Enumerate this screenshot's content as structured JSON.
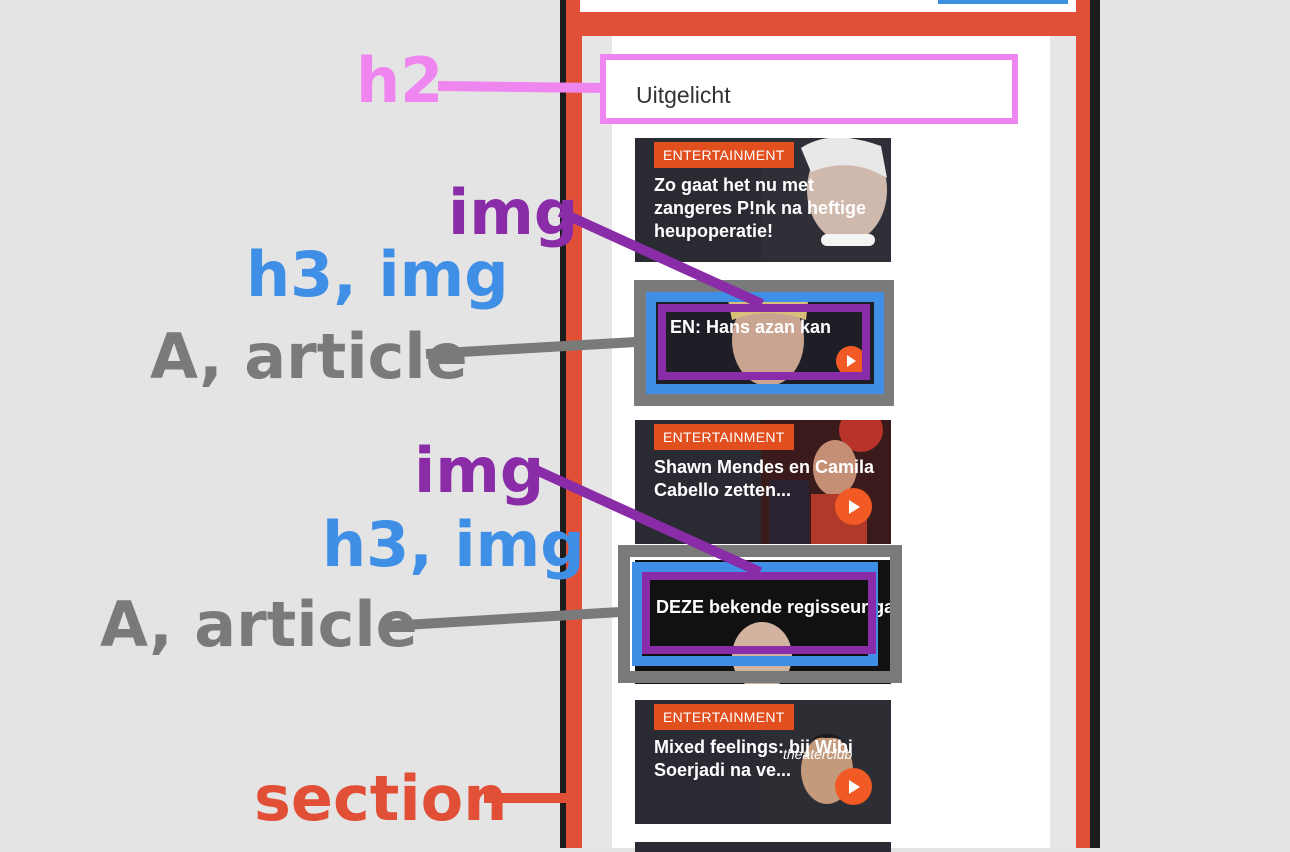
{
  "section_heading": "Uitgelicht",
  "articles": [
    {
      "category": "ENTERTAINMENT",
      "headline": "Zo gaat het nu met zangeres P!nk na heftige heupoperatie!"
    },
    {
      "category": "",
      "headline_partial": "EN: Hans azan kan"
    },
    {
      "category": "ENTERTAINMENT",
      "headline": "Shawn Mendes en Camila Cabello zetten..."
    },
    {
      "category": "",
      "headline_partial": "DEZE bekende regisseur gaat"
    },
    {
      "category": "ENTERTAINMENT",
      "headline": "Mixed feelings: bij Wibi Soerjadi na ve..."
    }
  ],
  "overlay_badge": "theaterclub",
  "annotations": {
    "h2": "h2",
    "img_1": "img",
    "h3_img_1": "h3, img",
    "a_article_1": "A, article",
    "img_2": "img",
    "h3_img_2": "h3, img",
    "a_article_2": "A, article",
    "section": "section"
  },
  "colors": {
    "section": "#e14f37",
    "h2": "#ef86ef",
    "img": "#8a2ca8",
    "h3_img": "#3f8fe6",
    "a_article": "#7a7a7a",
    "category_badge": "#e14f1e",
    "play_button": "#f15a24"
  },
  "icons": [
    "play-icon"
  ]
}
